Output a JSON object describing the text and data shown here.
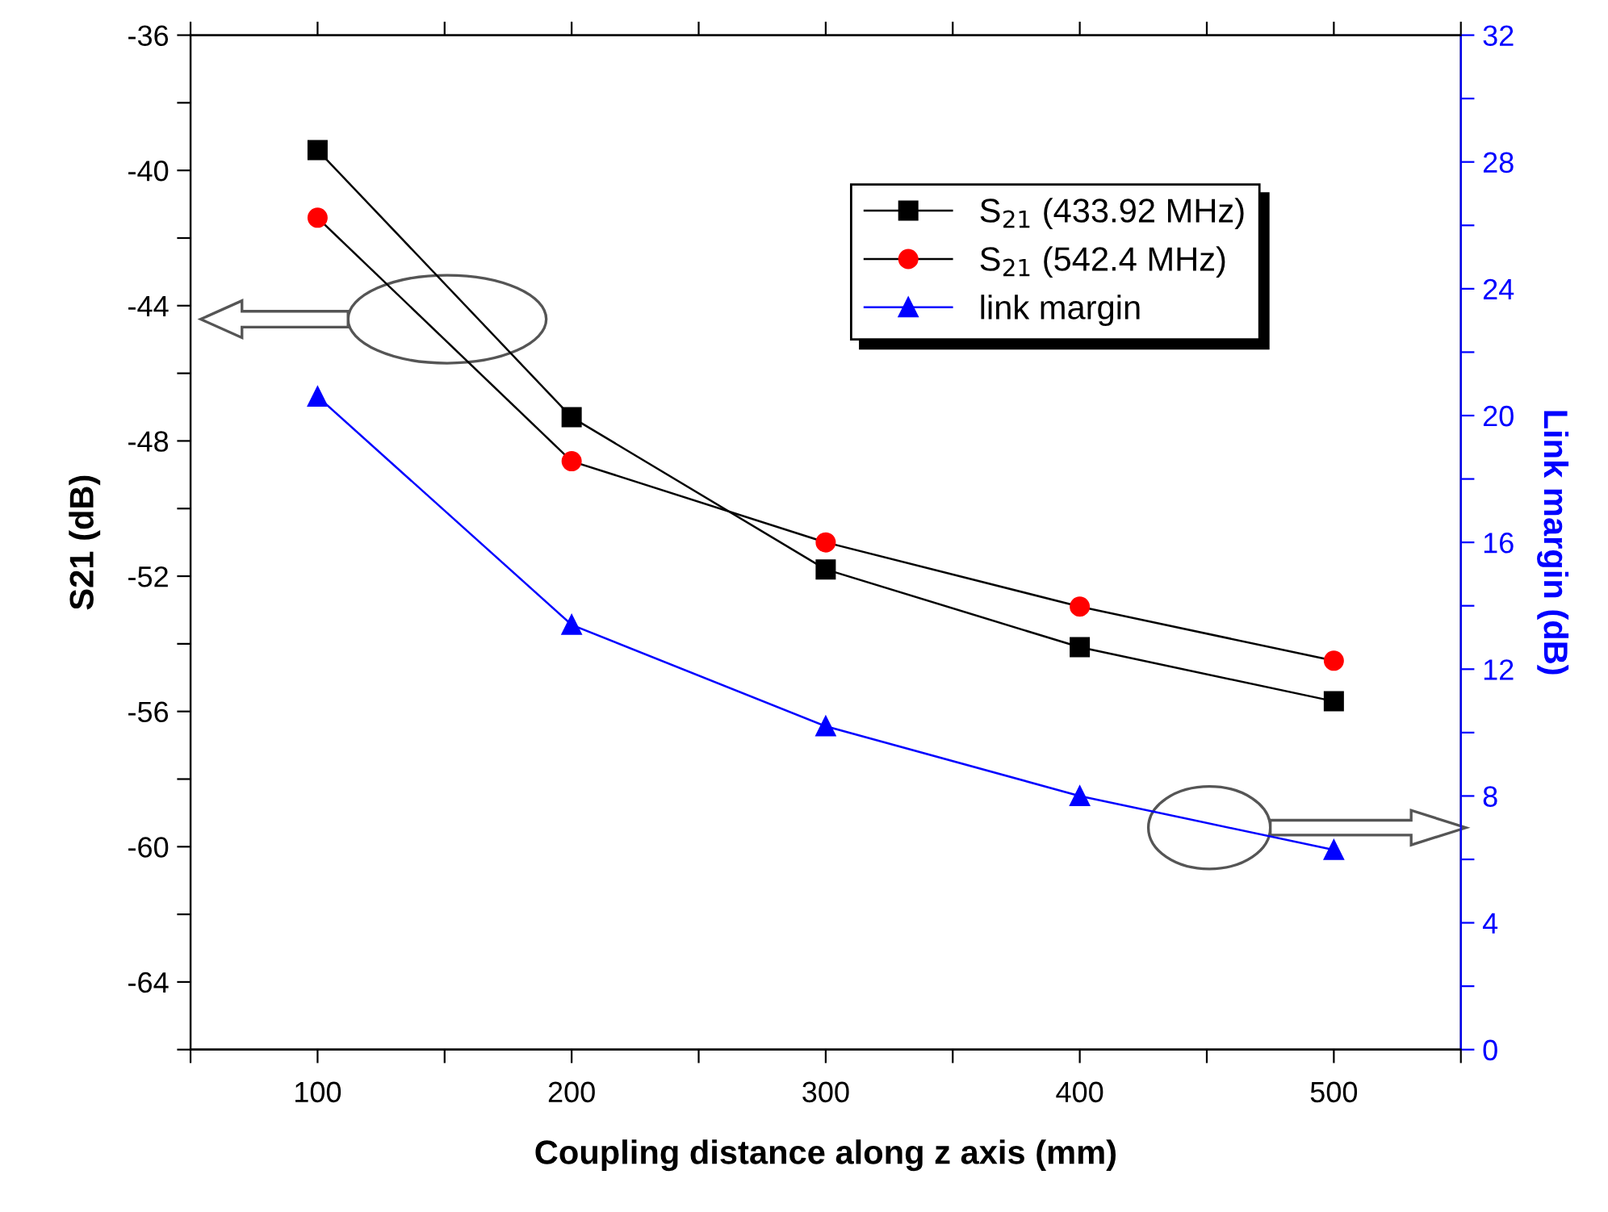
{
  "chart_data": {
    "type": "line",
    "xlabel": "Coupling distance along z axis (mm)",
    "ylabel": "S21 (dB)",
    "y2label": "Link margin (dB)",
    "x": [
      100,
      200,
      300,
      400,
      500
    ],
    "series": [
      {
        "name": "S$_{21}$ (433.92 MHz)",
        "color": "#000000",
        "marker": "square",
        "values": [
          -39.4,
          -47.3,
          -51.8,
          -54.1,
          -55.7
        ]
      },
      {
        "name": "S$_{21}$ (542.4 MHz)",
        "color": "#ff0000",
        "marker": "circle",
        "values": [
          -41.4,
          -48.6,
          -51.0,
          -52.9,
          -54.5
        ]
      },
      {
        "name": "link margin",
        "color": "#0000ff",
        "marker": "triangle",
        "axis": "y2",
        "values": [
          20.6,
          13.4,
          10.2,
          8.0,
          6.3
        ]
      }
    ],
    "xlim": [
      50,
      550
    ],
    "xticks": [
      {
        "value": 50,
        "label": null
      },
      100,
      {
        "value": 150,
        "label": null
      },
      200,
      {
        "value": 250,
        "label": null
      },
      300,
      {
        "value": 350,
        "label": null
      },
      400,
      {
        "value": 450,
        "label": null
      },
      500,
      {
        "value": 550,
        "label": null
      }
    ],
    "ylim": [
      -66,
      -36
    ],
    "yticks": [
      -36,
      {
        "value": -38,
        "label": null
      },
      -40,
      {
        "value": -42,
        "label": null
      },
      -44,
      {
        "value": -46,
        "label": null
      },
      -48,
      {
        "value": -50,
        "label": null
      },
      -52,
      {
        "value": -54,
        "label": null
      },
      -56,
      {
        "value": -58,
        "label": null
      },
      -60,
      {
        "value": -62,
        "label": null
      },
      -64,
      {
        "value": -66,
        "label": null
      }
    ],
    "y2lim": [
      0,
      32
    ],
    "y2ticks": [
      0,
      {
        "value": 2,
        "label": null
      },
      4,
      {
        "value": 6,
        "label": null
      },
      8,
      {
        "value": 10,
        "label": null
      },
      12,
      {
        "value": 14,
        "label": null
      },
      16,
      {
        "value": 18,
        "label": null
      },
      20,
      {
        "value": 22,
        "label": null
      },
      24,
      {
        "value": 26,
        "label": null
      },
      28,
      {
        "value": 30,
        "label": null
      },
      32
    ],
    "grid": false,
    "legend": "top right",
    "line_style": "solid"
  }
}
